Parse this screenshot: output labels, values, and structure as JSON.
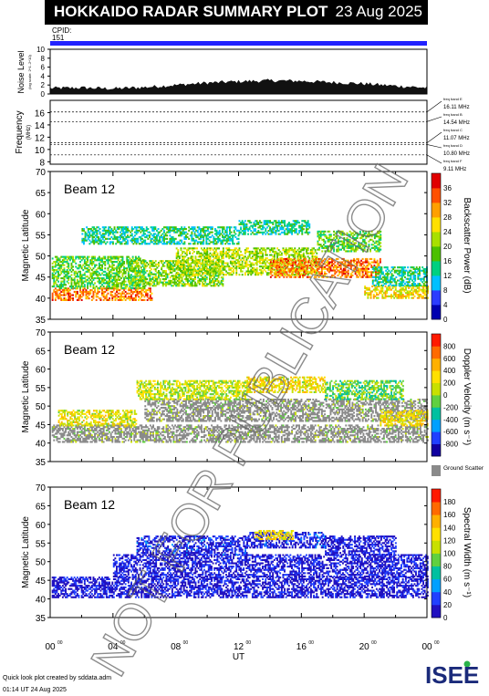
{
  "header": {
    "title": "HOKKAIDO RADAR SUMMARY PLOT",
    "date": "23 Aug 2025"
  },
  "cpid": {
    "label": "CPID:",
    "value": "151"
  },
  "noise": {
    "ylabel_main": "Noise Level",
    "ylabel_sub": "(log scale: 2^1..2^10)",
    "yticks": [
      "0",
      "2",
      "4",
      "6",
      "8",
      "10"
    ],
    "ylim": [
      0,
      10
    ]
  },
  "frequency": {
    "ylabel_main": "Frequency",
    "ylabel_sub": "(MHz)",
    "yticks": [
      "8",
      "10",
      "12",
      "14",
      "16"
    ],
    "ylim": [
      7.6,
      18.0
    ],
    "bands": [
      {
        "name": "freq band E",
        "value": "16.11 MHz",
        "mhz": 16.11
      },
      {
        "name": "freq band B",
        "value": "14.54 MHz",
        "mhz": 14.54
      },
      {
        "name": "freq band C",
        "value": "11.07 MHz",
        "mhz": 11.07
      },
      {
        "name": "freq band D",
        "value": "10.80 MHz",
        "mhz": 10.8
      },
      {
        "name": "freq band F",
        "value": "9.11 MHz",
        "mhz": 9.11
      }
    ]
  },
  "panels": [
    {
      "id": "power",
      "beam_label": "Beam 12",
      "ylabel": "Magnetic Latitude",
      "colorbar_label": "Backscatter Power (dB)",
      "cb_ticks": [
        "0",
        "4",
        "8",
        "12",
        "16",
        "20",
        "24",
        "28",
        "32",
        "36"
      ],
      "cb_range": [
        0,
        40
      ],
      "palette": [
        "#0000b0",
        "#2b3cff",
        "#00c0ff",
        "#00d080",
        "#4cc000",
        "#a8e000",
        "#ffe000",
        "#ffa000",
        "#ff5000",
        "#e00000"
      ]
    },
    {
      "id": "velocity",
      "beam_label": "Beam 12",
      "ylabel": "Magnetic Latitude",
      "colorbar_label": "Doppler Velocity (m s⁻¹)",
      "cb_ticks": [
        "800",
        "600",
        "400",
        "200",
        "0",
        "-200",
        "-400",
        "-600",
        "-800"
      ],
      "cb_range": [
        -1000,
        1000
      ],
      "palette": [
        "#ff1a00",
        "#ff6a00",
        "#ffb000",
        "#ffe000",
        "#c8e000",
        "#60d040",
        "#00c0a0",
        "#00a0ff",
        "#2040ff",
        "#1000a0"
      ],
      "ground_label": "Ground Scatter",
      "ground_color": "#8a8a8a"
    },
    {
      "id": "width",
      "beam_label": "Beam 12",
      "ylabel": "Magnetic Latitude",
      "colorbar_label": "Spectral Width (m s⁻¹)",
      "cb_ticks": [
        "0",
        "20",
        "40",
        "60",
        "80",
        "100",
        "120",
        "140",
        "160",
        "180"
      ],
      "cb_range": [
        0,
        200
      ],
      "palette": [
        "#2010c0",
        "#2040ff",
        "#00a0ff",
        "#00c0a0",
        "#60d040",
        "#c8e000",
        "#ffe000",
        "#ffb000",
        "#ff6a00",
        "#ff1a00"
      ]
    }
  ],
  "axes": {
    "lat_ticks": [
      "35",
      "40",
      "45",
      "50",
      "55",
      "60",
      "65",
      "70"
    ],
    "lat_range": [
      35,
      70
    ],
    "time_ticks": [
      "00",
      "04",
      "08",
      "12",
      "16",
      "20",
      "00"
    ],
    "time_super": "00",
    "xlabel": "UT",
    "time_range_hours": [
      0,
      24
    ]
  },
  "watermark": "NOT FOR PUBLICATION",
  "footer": {
    "created": "Quick look plot created by sddata.adm",
    "time": "01:14 UT 24 Aug 2025"
  },
  "logo": {
    "text": "ISEE"
  },
  "chart_data": {
    "type": "heatmap",
    "title": "HOKKAIDO RADAR SUMMARY PLOT",
    "date": "23 Aug 2025",
    "beam": 12,
    "x_range_hours_ut": [
      0,
      24
    ],
    "y_range_mlat": [
      35,
      70
    ],
    "noise_level": {
      "hours": [
        0,
        2,
        4,
        6,
        8,
        10,
        12,
        14,
        16,
        18,
        20,
        22,
        24
      ],
      "values": [
        1.3,
        1.4,
        1.2,
        1.5,
        2.0,
        2.5,
        2.8,
        3.0,
        2.9,
        2.6,
        2.3,
        1.8,
        1.4
      ]
    },
    "frequency_bands_mhz": [
      16.11,
      14.54,
      11.07,
      10.8,
      9.11
    ],
    "series": [
      {
        "name": "Backscatter Power (dB)",
        "range": [
          0,
          40
        ],
        "regions": [
          {
            "t0": 0.1,
            "t1": 6.5,
            "lat0": 39.5,
            "lat1": 42.5,
            "value": 32
          },
          {
            "t0": 0.1,
            "t1": 6.0,
            "lat0": 42.5,
            "lat1": 50.0,
            "value": 18
          },
          {
            "t0": 2.0,
            "t1": 12.0,
            "lat0": 53.0,
            "lat1": 57.0,
            "value": 14
          },
          {
            "t0": 5.0,
            "t1": 11.0,
            "lat0": 43.0,
            "lat1": 49.0,
            "value": 20
          },
          {
            "t0": 8.0,
            "t1": 17.0,
            "lat0": 45.5,
            "lat1": 52.0,
            "value": 22
          },
          {
            "t0": 14.0,
            "t1": 21.0,
            "lat0": 45.0,
            "lat1": 49.5,
            "value": 32
          },
          {
            "t0": 20.0,
            "t1": 24.0,
            "lat0": 40.0,
            "lat1": 43.0,
            "value": 26
          },
          {
            "t0": 20.5,
            "t1": 24.0,
            "lat0": 43.0,
            "lat1": 47.5,
            "value": 14
          },
          {
            "t0": 17.0,
            "t1": 21.0,
            "lat0": 51.0,
            "lat1": 56.0,
            "value": 18
          },
          {
            "t0": 12.0,
            "t1": 16.5,
            "lat0": 55.0,
            "lat1": 58.5,
            "value": 14
          }
        ]
      },
      {
        "name": "Doppler Velocity (m s⁻¹)",
        "range": [
          -1000,
          1000
        ],
        "regions": [
          {
            "t0": 0.1,
            "t1": 24.0,
            "lat0": 40.5,
            "lat1": 45.0,
            "value": "ground"
          },
          {
            "t0": 6.0,
            "t1": 24.0,
            "lat0": 46.0,
            "lat1": 52.0,
            "value": "ground"
          },
          {
            "t0": 0.5,
            "t1": 5.5,
            "lat0": 45.0,
            "lat1": 49.0,
            "value": -200
          },
          {
            "t0": 5.5,
            "t1": 12.5,
            "lat0": 52.0,
            "lat1": 57.0,
            "value": -100
          },
          {
            "t0": 12.5,
            "t1": 17.5,
            "lat0": 54.0,
            "lat1": 58.0,
            "value": -250
          },
          {
            "t0": 17.5,
            "t1": 22.5,
            "lat0": 52.0,
            "lat1": 57.0,
            "value": 120
          },
          {
            "t0": 21.0,
            "t1": 24.0,
            "lat0": 45.0,
            "lat1": 49.0,
            "value": -300
          }
        ]
      },
      {
        "name": "Spectral Width (m s⁻¹)",
        "range": [
          0,
          200
        ],
        "regions": [
          {
            "t0": 0.1,
            "t1": 24.0,
            "lat0": 40.5,
            "lat1": 46.0,
            "value": 10
          },
          {
            "t0": 4.0,
            "t1": 24.0,
            "lat0": 46.0,
            "lat1": 52.0,
            "value": 12
          },
          {
            "t0": 5.5,
            "t1": 12.5,
            "lat0": 52.0,
            "lat1": 57.0,
            "value": 15
          },
          {
            "t0": 12.5,
            "t1": 17.5,
            "lat0": 54.0,
            "lat1": 58.0,
            "value": 18
          },
          {
            "t0": 17.5,
            "t1": 22.0,
            "lat0": 52.0,
            "lat1": 57.0,
            "value": 12
          },
          {
            "t0": 13.0,
            "t1": 15.5,
            "lat0": 56.0,
            "lat1": 58.5,
            "value": 130
          }
        ]
      }
    ]
  }
}
